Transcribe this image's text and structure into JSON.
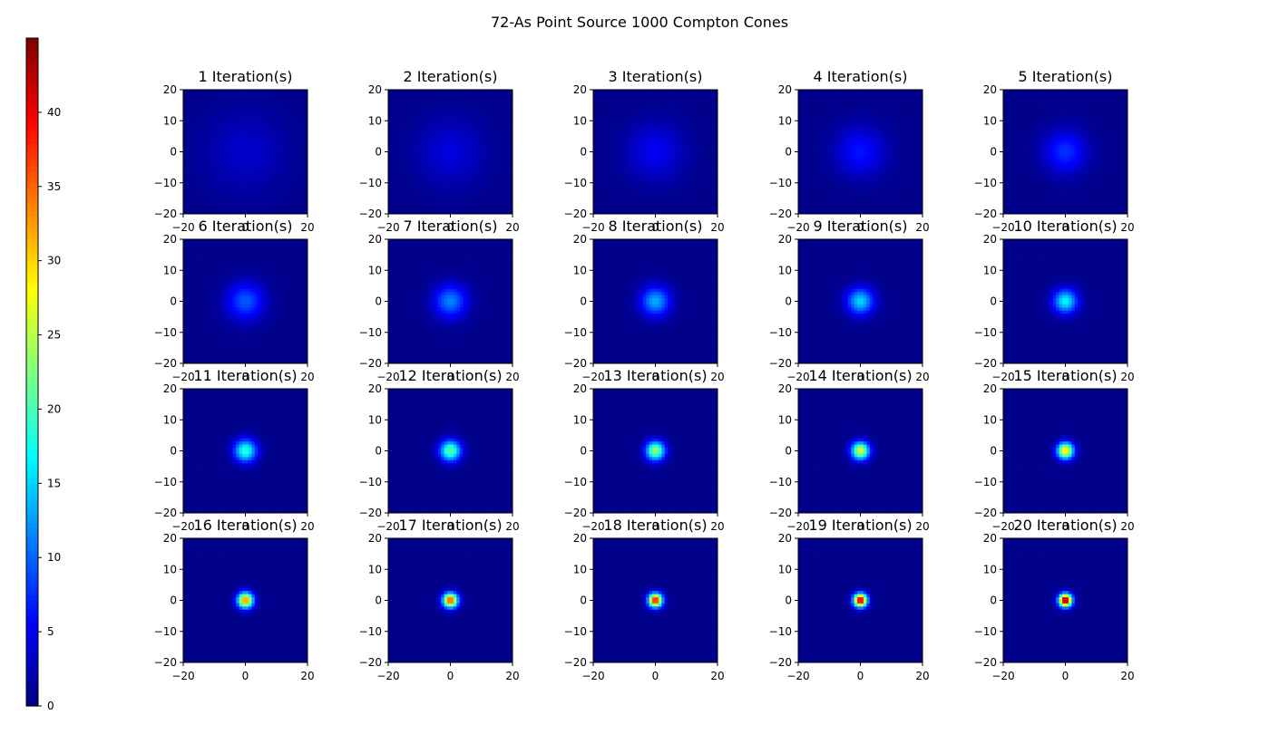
{
  "chart_data": {
    "type": "heatmap",
    "title": "72-As Point Source 1000 Compton Cones",
    "colormap": "jet",
    "colorbar": {
      "range": [
        0,
        45
      ],
      "ticks": [
        0,
        5,
        10,
        15,
        20,
        25,
        30,
        35,
        40
      ]
    },
    "xlim": [
      -20,
      20
    ],
    "ylim": [
      -20,
      20
    ],
    "xticks": [
      -20,
      0,
      20
    ],
    "yticks": [
      -20,
      -10,
      0,
      10,
      20
    ],
    "source_position": [
      0,
      0
    ],
    "panels": [
      {
        "title": "1 Iteration(s)",
        "peak": 2.8,
        "sigma": 9.0
      },
      {
        "title": "2 Iteration(s)",
        "peak": 3.6,
        "sigma": 7.5
      },
      {
        "title": "3 Iteration(s)",
        "peak": 4.6,
        "sigma": 6.4
      },
      {
        "title": "4 Iteration(s)",
        "peak": 5.8,
        "sigma": 5.6
      },
      {
        "title": "5 Iteration(s)",
        "peak": 7.2,
        "sigma": 4.9
      },
      {
        "title": "6 Iteration(s)",
        "peak": 9.0,
        "sigma": 4.3
      },
      {
        "title": "7 Iteration(s)",
        "peak": 10.8,
        "sigma": 3.8
      },
      {
        "title": "8 Iteration(s)",
        "peak": 12.6,
        "sigma": 3.4
      },
      {
        "title": "9 Iteration(s)",
        "peak": 14.4,
        "sigma": 3.1
      },
      {
        "title": "10 Iteration(s)",
        "peak": 16.2,
        "sigma": 2.8
      },
      {
        "title": "11 Iteration(s)",
        "peak": 18.5,
        "sigma": 2.6
      },
      {
        "title": "12 Iteration(s)",
        "peak": 21.0,
        "sigma": 2.4
      },
      {
        "title": "13 Iteration(s)",
        "peak": 23.5,
        "sigma": 2.2
      },
      {
        "title": "14 Iteration(s)",
        "peak": 26.5,
        "sigma": 2.05
      },
      {
        "title": "15 Iteration(s)",
        "peak": 29.5,
        "sigma": 1.9
      },
      {
        "title": "16 Iteration(s)",
        "peak": 33.0,
        "sigma": 1.8
      },
      {
        "title": "17 Iteration(s)",
        "peak": 36.0,
        "sigma": 1.7
      },
      {
        "title": "18 Iteration(s)",
        "peak": 39.0,
        "sigma": 1.6
      },
      {
        "title": "19 Iteration(s)",
        "peak": 42.0,
        "sigma": 1.55
      },
      {
        "title": "20 Iteration(s)",
        "peak": 45.0,
        "sigma": 1.5
      }
    ]
  }
}
